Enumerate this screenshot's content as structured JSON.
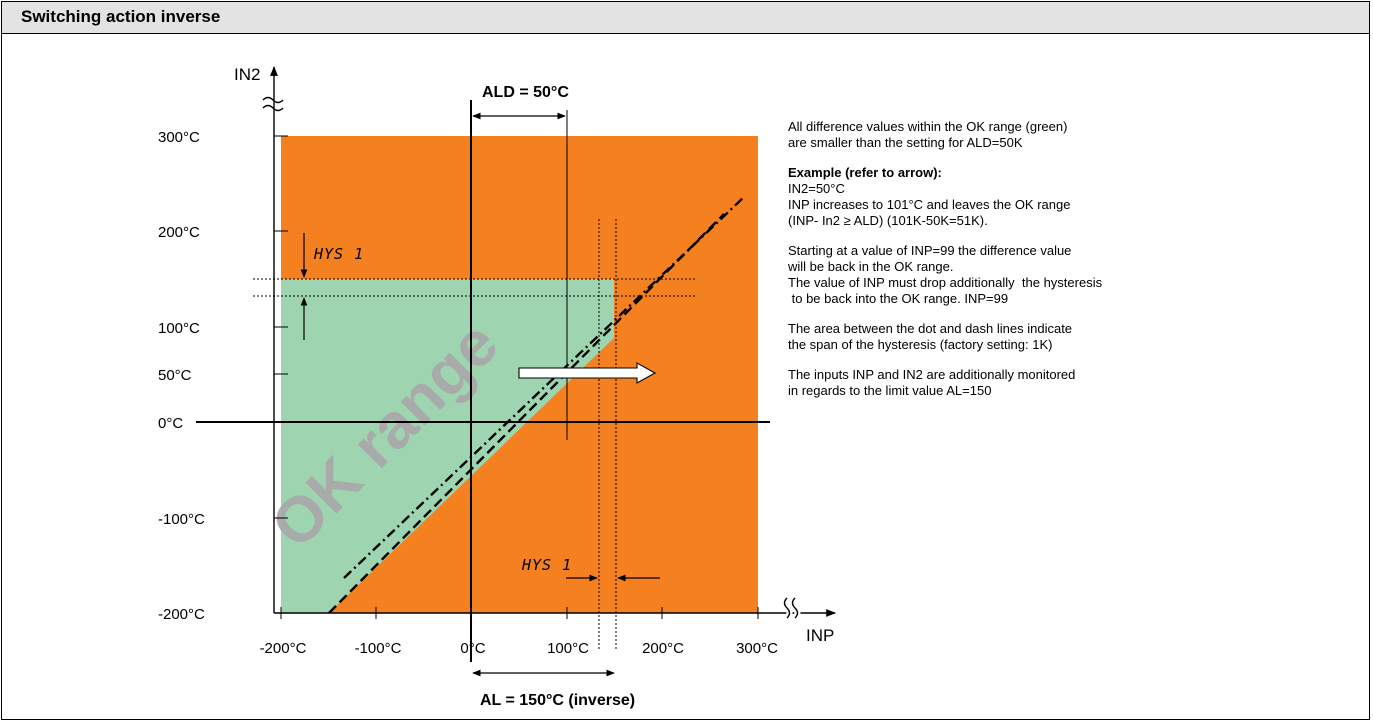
{
  "title": "Switching action inverse",
  "axes": {
    "y_label": "IN2",
    "x_label": "INP",
    "y_ticks": [
      "300°C",
      "200°C",
      "100°C",
      "50°C",
      "0°C",
      "-100°C",
      "-200°C"
    ],
    "x_ticks": [
      "-200°C",
      "-100°C",
      "0°C",
      "100°C",
      "200°C",
      "300°C"
    ]
  },
  "labels": {
    "ald": "ALD = 50°C",
    "al": "AL = 150°C (inverse)",
    "hys_top": "HYS 1",
    "hys_bottom": "HYS 1",
    "ok_range": "OK range"
  },
  "colors": {
    "not_ok_area": "#f4801f",
    "ok_area": "#9ed5b0",
    "watermark": "#a9a9a9",
    "title_bar": "#e3e3e3"
  },
  "notes": [
    {
      "lines": [
        "All difference values within the OK range (green)",
        "are smaller than the setting for ALD=50K"
      ]
    },
    {
      "heading": "Example (refer to arrow):",
      "lines": [
        "IN2=50°C",
        "INP increases to 101°C and leaves the OK range",
        "(INP- In2 ≥ ALD) (101K-50K=51K)."
      ]
    },
    {
      "lines": [
        "Starting at a value of INP=99 the difference value",
        "will be back in the OK range.",
        "The value of INP must drop additionally  the hysteresis",
        " to be back into the OK range. INP=99"
      ]
    },
    {
      "lines": [
        "The area between the dot and dash lines indicate",
        "the span of the hysteresis (factory setting: 1K)"
      ]
    },
    {
      "lines": [
        "The inputs INP and IN2 are additionally monitored",
        "in regards to the limit value AL=150"
      ]
    }
  ]
}
